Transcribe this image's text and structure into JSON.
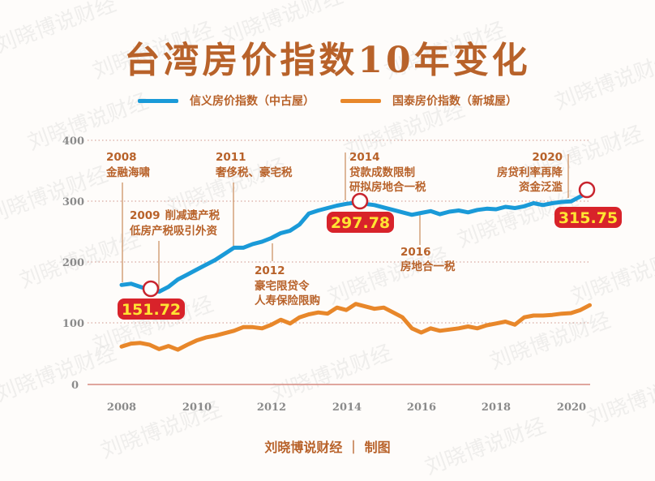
{
  "title": "台湾房价指数10年变化",
  "legend": [
    {
      "label": "信义房价指数（中古屋）",
      "color": "#1a9ad8"
    },
    {
      "label": "国泰房价指数（新城屋）",
      "color": "#e8872a"
    }
  ],
  "credit": "刘晓博说财经 ｜ 制图",
  "watermark": "刘晓博说财经",
  "callouts": [
    {
      "value": "151.72"
    },
    {
      "value": "297.78"
    },
    {
      "value": "315.75"
    }
  ],
  "annotations": [
    {
      "year": "2008",
      "text": "金融海啸"
    },
    {
      "year": "2009",
      "text": "削减遗产税",
      "text2": "低房产税吸引外资"
    },
    {
      "year": "2011",
      "text": "奢侈税、豪宅税"
    },
    {
      "year": "2012",
      "text": "豪宅限贷令",
      "text2": "人寿保险限购"
    },
    {
      "year": "2014",
      "text": "贷款成数限制",
      "text2": "研拟房地合一税"
    },
    {
      "year": "2016",
      "text": "房地合一税"
    },
    {
      "year": "2020",
      "text": "房贷利率再降",
      "text2": "资金泛滥"
    }
  ],
  "y_ticks": [
    "400",
    "300",
    "200",
    "100",
    "0"
  ],
  "x_ticks": [
    "2008",
    "2010",
    "2012",
    "2014",
    "2016",
    "2018",
    "2020"
  ],
  "chart_data": {
    "type": "line",
    "title": "台湾房价指数10年变化",
    "xlabel": "",
    "ylabel": "",
    "ylim": [
      0,
      400
    ],
    "xlim": [
      2008,
      2020.6
    ],
    "grid": "horizontal dotted",
    "legend_position": "top",
    "x": [
      2008.0,
      2008.25,
      2008.5,
      2008.75,
      2009.0,
      2009.25,
      2009.5,
      2009.75,
      2010.0,
      2010.25,
      2010.5,
      2010.75,
      2011.0,
      2011.25,
      2011.5,
      2011.75,
      2012.0,
      2012.25,
      2012.5,
      2012.75,
      2013.0,
      2013.25,
      2013.5,
      2013.75,
      2014.0,
      2014.25,
      2014.5,
      2014.75,
      2015.0,
      2015.25,
      2015.5,
      2015.75,
      2016.0,
      2016.25,
      2016.5,
      2016.75,
      2017.0,
      2017.25,
      2017.5,
      2017.75,
      2018.0,
      2018.25,
      2018.5,
      2018.75,
      2019.0,
      2019.25,
      2019.5,
      2019.75,
      2020.0,
      2020.25,
      2020.5
    ],
    "series": [
      {
        "name": "信义房价指数（中古屋）",
        "color": "#1a9ad8",
        "values": [
          163,
          165,
          160,
          155,
          152,
          160,
          172,
          180,
          188,
          196,
          204,
          214,
          224,
          224,
          230,
          234,
          240,
          248,
          252,
          262,
          280,
          285,
          289,
          293,
          296,
          298,
          296,
          294,
          290,
          286,
          282,
          278,
          281,
          284,
          279,
          283,
          285,
          282,
          286,
          288,
          287,
          291,
          289,
          292,
          297,
          294,
          297,
          299,
          300,
          308,
          316
        ]
      },
      {
        "name": "国泰房价指数（新城屋）",
        "color": "#e8872a",
        "values": [
          62,
          67,
          68,
          65,
          58,
          63,
          57,
          65,
          72,
          77,
          80,
          84,
          88,
          94,
          94,
          92,
          98,
          106,
          100,
          110,
          115,
          118,
          116,
          126,
          122,
          132,
          128,
          124,
          126,
          118,
          110,
          92,
          85,
          92,
          88,
          90,
          92,
          95,
          92,
          97,
          100,
          103,
          98,
          110,
          113,
          113,
          114,
          116,
          117,
          122,
          130
        ]
      }
    ],
    "highlighted_points": [
      {
        "x": 2008.75,
        "y": 151.72,
        "series": "信义房价指数（中古屋）"
      },
      {
        "x": 2014.3,
        "y": 297.78,
        "series": "信义房价指数（中古屋）"
      },
      {
        "x": 2020.5,
        "y": 315.75,
        "series": "信义房价指数（中古屋）"
      }
    ]
  }
}
